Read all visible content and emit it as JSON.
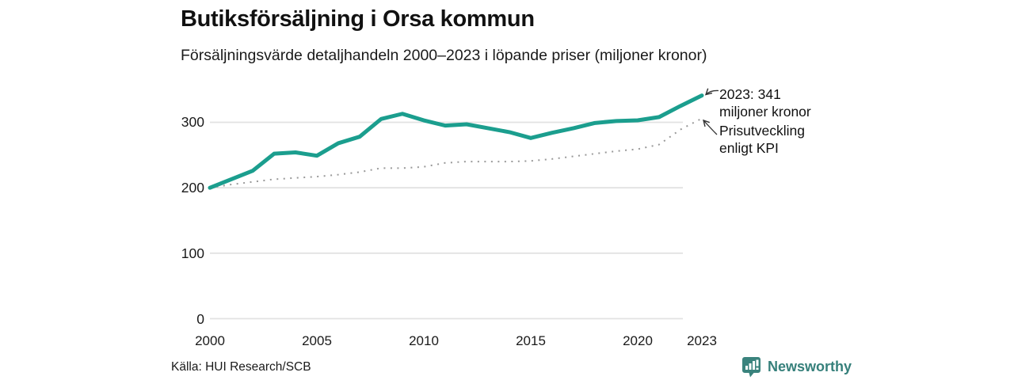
{
  "header": {
    "title": "Butiksförsäljning i Orsa kommun",
    "subtitle": "Försäljningsvärde detaljhandeln 2000–2023 i löpande priser (miljoner kronor)"
  },
  "chart_data": {
    "type": "line",
    "title": "Butiksförsäljning i Orsa kommun",
    "subtitle": "Försäljningsvärde detaljhandeln 2000–2023 i löpande priser (miljoner kronor)",
    "x": [
      2000,
      2001,
      2002,
      2003,
      2004,
      2005,
      2006,
      2007,
      2008,
      2009,
      2010,
      2011,
      2012,
      2013,
      2014,
      2015,
      2016,
      2017,
      2018,
      2019,
      2020,
      2021,
      2022,
      2023
    ],
    "series": [
      {
        "name": "Försäljningsvärde detaljhandeln (löpande priser)",
        "color": "#1b9e8e",
        "style": "solid",
        "values": [
          200,
          213,
          226,
          252,
          254,
          249,
          268,
          278,
          305,
          313,
          303,
          295,
          297,
          291,
          285,
          276,
          284,
          291,
          299,
          302,
          303,
          308,
          325,
          341
        ]
      },
      {
        "name": "Prisutveckling enligt KPI",
        "color": "#999999",
        "style": "dotted",
        "values": [
          200,
          205,
          209,
          213,
          215,
          217,
          220,
          224,
          230,
          230,
          232,
          238,
          240,
          240,
          240,
          241,
          244,
          248,
          252,
          256,
          259,
          266,
          289,
          306
        ]
      }
    ],
    "xticks": [
      2000,
      2005,
      2010,
      2015,
      2020,
      2023
    ],
    "yticks": [
      0,
      100,
      200,
      300
    ],
    "ylim": [
      0,
      360
    ],
    "grid": "horizontal",
    "legend": "none",
    "annotations": [
      {
        "line1": "2023: 341",
        "line2": "miljoner kronor",
        "target_series": 0
      },
      {
        "line1": "Prisutveckling",
        "line2": "enligt KPI",
        "target_series": 1
      }
    ],
    "grid_color": "#e2e2e2"
  },
  "footer": {
    "source": "Källa: HUI Research/SCB",
    "brand": "Newsworthy",
    "brand_color": "#36807b"
  }
}
